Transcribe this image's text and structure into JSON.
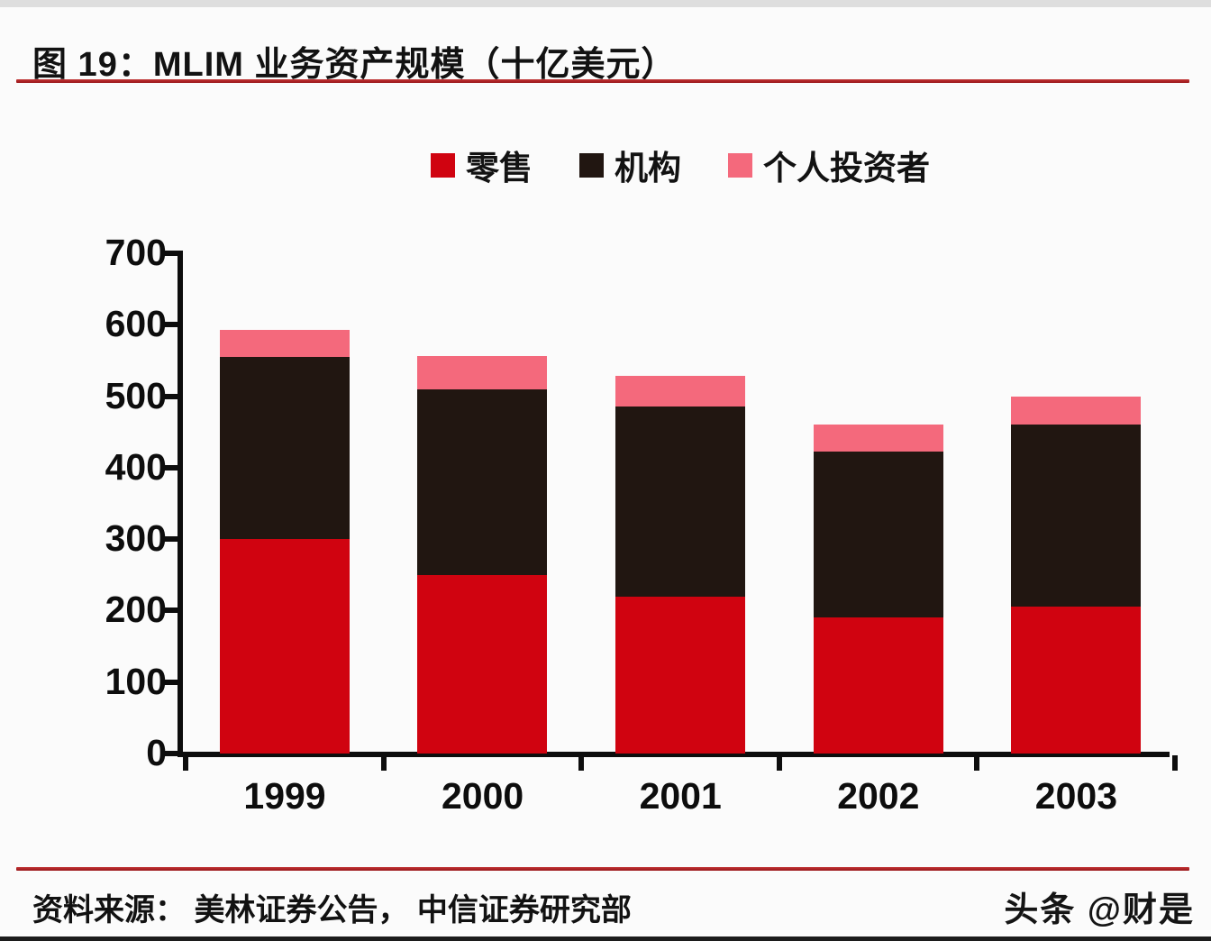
{
  "header": {
    "title": "图 19：MLIM 业务资产规模（十亿美元）"
  },
  "footer": {
    "source_label": "资料来源：  美林证券公告，  中信证券研究部",
    "watermark": "头条 @财是"
  },
  "colors": {
    "retail": "#d00310",
    "institution": "#211611",
    "private": "#f4697c",
    "rule_red": "#a32023",
    "axis_black": "#0d0d0d"
  },
  "chart_data": {
    "type": "bar",
    "stacked": true,
    "title": "图 19：MLIM 业务资产规模（十亿美元）",
    "categories": [
      "1999",
      "2000",
      "2001",
      "2002",
      "2003"
    ],
    "series": [
      {
        "name": "零售",
        "color": "#d00310",
        "values": [
          300,
          250,
          220,
          190,
          206
        ]
      },
      {
        "name": "机构",
        "color": "#211611",
        "values": [
          255,
          260,
          265,
          233,
          254
        ]
      },
      {
        "name": "个人投资者",
        "color": "#f4697c",
        "values": [
          38,
          46,
          43,
          38,
          40
        ]
      }
    ],
    "totals": [
      593,
      556,
      528,
      461,
      500
    ],
    "xlabel": "",
    "ylabel": "",
    "ylim": [
      0,
      700
    ],
    "yticks": [
      0,
      100,
      200,
      300,
      400,
      500,
      600,
      700
    ],
    "legend_position": "top-center",
    "grid": false
  }
}
